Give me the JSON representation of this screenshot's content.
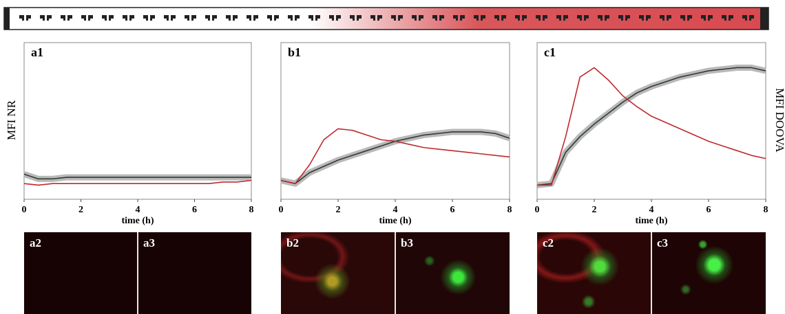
{
  "chart_data": [
    {
      "type": "line",
      "title": "a1",
      "xlabel": "time (h)",
      "x": [
        0,
        0.5,
        1,
        1.5,
        2,
        2.5,
        3,
        3.5,
        4,
        4.5,
        5,
        5.5,
        6,
        6.5,
        7,
        7.5,
        8
      ],
      "xlim": [
        0,
        8
      ],
      "xticks": [
        0,
        2,
        4,
        6,
        8
      ],
      "ylim": [
        0,
        100
      ],
      "series": [
        {
          "color": "#2f3b30",
          "band_color": "#b9b9b9",
          "values": [
            16,
            13,
            13,
            14,
            14,
            14,
            14,
            14,
            14,
            14,
            14,
            14,
            14,
            14,
            14,
            14,
            14
          ]
        },
        {
          "color": "#c0272d",
          "values": [
            10,
            9,
            10,
            10,
            10,
            10,
            10,
            10,
            10,
            10,
            10,
            10,
            10,
            10,
            11,
            11,
            12
          ]
        }
      ]
    },
    {
      "type": "line",
      "title": "b1",
      "xlabel": "time (h)",
      "x": [
        0,
        0.5,
        1,
        1.5,
        2,
        2.5,
        3,
        3.5,
        4,
        4.5,
        5,
        5.5,
        6,
        6.5,
        7,
        7.5,
        8
      ],
      "xlim": [
        0,
        8
      ],
      "xticks": [
        0,
        2,
        4,
        6,
        8
      ],
      "ylim": [
        0,
        100
      ],
      "series": [
        {
          "color": "#2f3b30",
          "band_color": "#b9b9b9",
          "values": [
            12,
            10,
            17,
            21,
            25,
            28,
            31,
            34,
            37,
            39,
            41,
            42,
            43,
            43,
            43,
            42,
            39
          ]
        },
        {
          "color": "#c0272d",
          "values": [
            12,
            10,
            22,
            38,
            45,
            44,
            41,
            38,
            37,
            35,
            33,
            32,
            31,
            30,
            29,
            28,
            27
          ]
        }
      ]
    },
    {
      "type": "line",
      "title": "c1",
      "xlabel": "time (h)",
      "x": [
        0,
        0.5,
        1,
        1.5,
        2,
        2.5,
        3,
        3.5,
        4,
        4.5,
        5,
        5.5,
        6,
        6.5,
        7,
        7.5,
        8
      ],
      "xlim": [
        0,
        8
      ],
      "xticks": [
        0,
        2,
        4,
        6,
        8
      ],
      "ylim": [
        0,
        100
      ],
      "series": [
        {
          "color": "#2f3b30",
          "band_color": "#b9b9b9",
          "values": [
            9,
            10,
            30,
            40,
            48,
            55,
            62,
            68,
            72,
            75,
            78,
            80,
            82,
            83,
            84,
            84,
            82
          ]
        },
        {
          "color": "#c0272d",
          "values": [
            9,
            9,
            40,
            78,
            84,
            76,
            66,
            59,
            53,
            49,
            45,
            41,
            37,
            34,
            31,
            28,
            26
          ]
        }
      ]
    }
  ],
  "y_label_left": "MFI NR",
  "y_label_right": "MFI DOOVA",
  "image_labels": [
    [
      "a2",
      "a3"
    ],
    [
      "b2",
      "b3"
    ],
    [
      "c2",
      "c3"
    ]
  ]
}
